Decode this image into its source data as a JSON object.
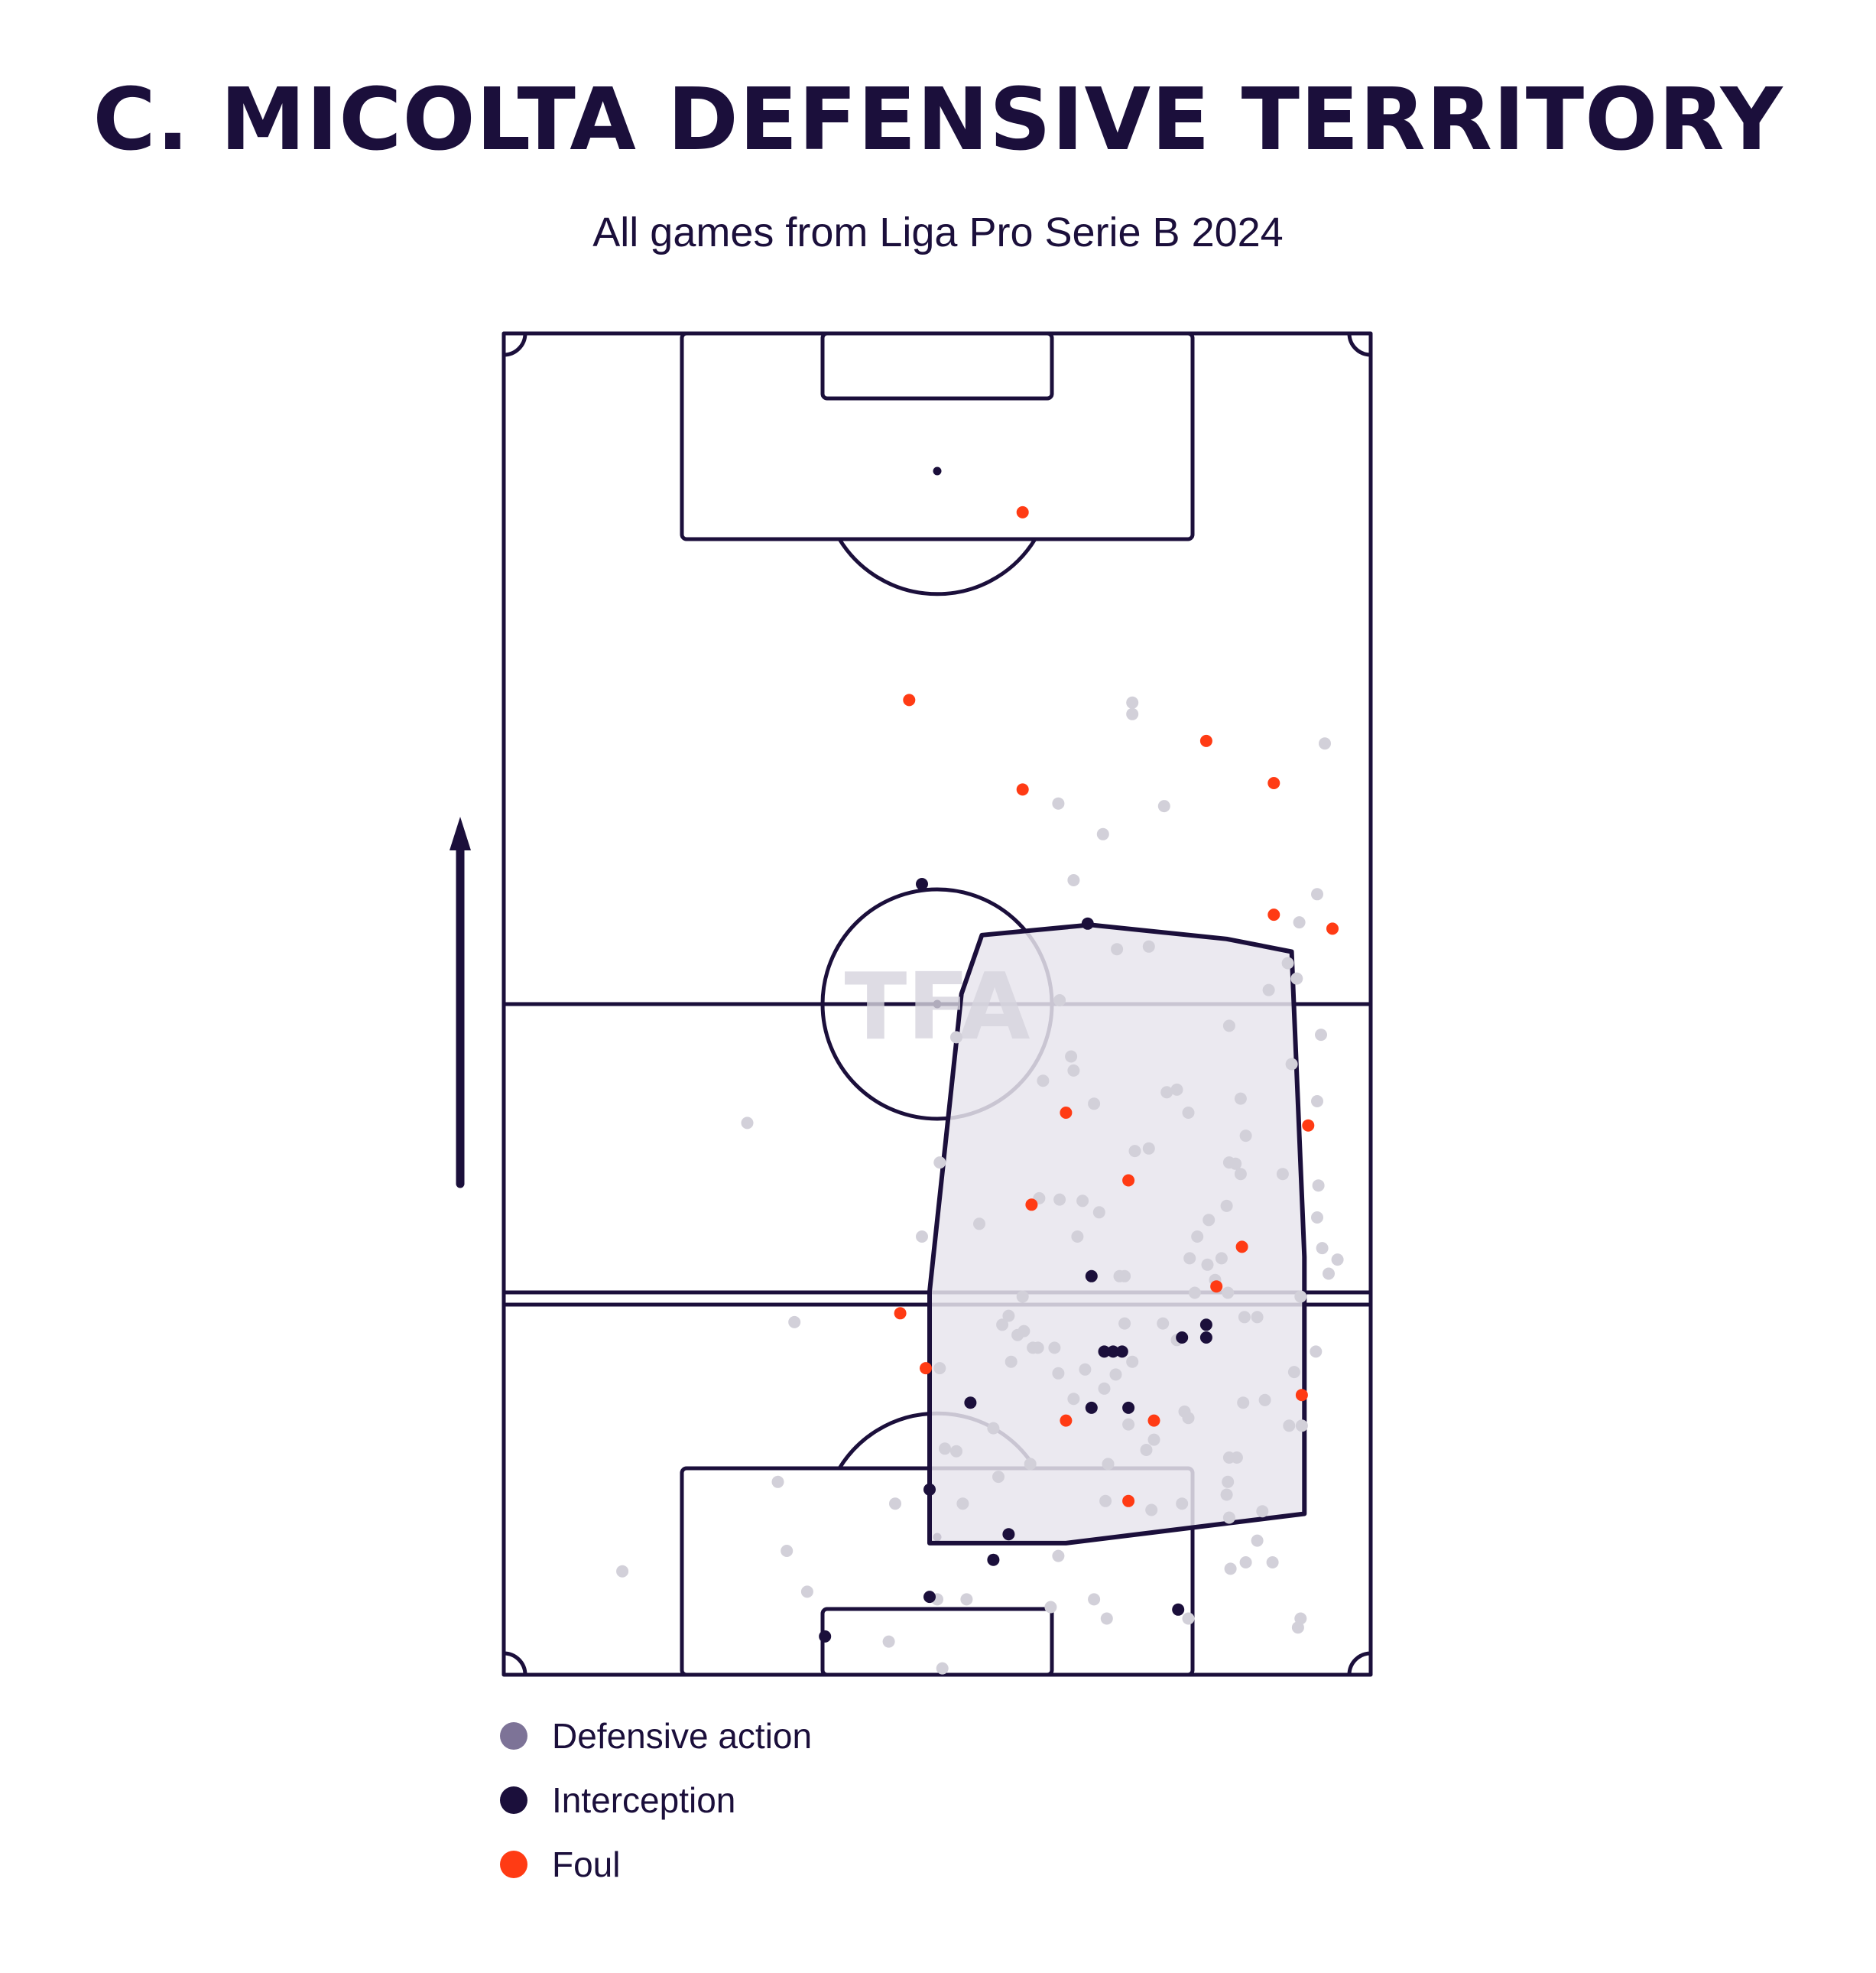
{
  "title": "C. MICOLTA DEFENSIVE TERRITORY",
  "subtitle": "All games from Liga Pro Serie B 2024",
  "watermark": "TFA",
  "colors": {
    "ink": "#1b0f3b",
    "defensive_action": "#d2d0d9",
    "interception": "#1b0f3b",
    "foul": "#ff3b14",
    "territory_fill": "#e8e5ed",
    "watermark": "#d6d3dd"
  },
  "direction_arrow": {
    "icon": "arrow-up-icon",
    "meaning": "attacking direction"
  },
  "legend": [
    {
      "label": "Defensive action",
      "color": "#7d7397"
    },
    {
      "label": "Interception",
      "color": "#1b0f3b"
    },
    {
      "label": "Foul",
      "color": "#ff3b14"
    }
  ],
  "chart_data": {
    "type": "scatter",
    "pitch": {
      "length": 105,
      "width": 68,
      "orientation": "vertical",
      "attacking": "up"
    },
    "series": [
      {
        "name": "Defensive action",
        "points": [
          [
            49.3,
            75.2
          ],
          [
            30.2,
            2.6
          ],
          [
            23.8,
            6.5
          ],
          [
            22.2,
            9.7
          ],
          [
            36.3,
            5.9
          ],
          [
            35.5,
            17.5
          ],
          [
            32.8,
            34.3
          ],
          [
            64.2,
            33.4
          ],
          [
            62.5,
            4.4
          ],
          [
            50.6,
            57.0
          ],
          [
            62.4,
            58.9
          ],
          [
            64.7,
            31.4
          ],
          [
            63.8,
            35.8
          ],
          [
            61.8,
            47.8
          ],
          [
            59.7,
            21.5
          ],
          [
            63.9,
            38.3
          ],
          [
            56.9,
            50.8
          ],
          [
            56.7,
            36.7
          ],
          [
            61.5,
            55.7
          ],
          [
            59.5,
            12.8
          ],
          [
            44.7,
            47.3
          ],
          [
            65.4,
            32.5
          ],
          [
            64.1,
            50.1
          ],
          [
            49.5,
            41.0
          ],
          [
            34.2,
            40.1
          ],
          [
            62.0,
            23.7
          ],
          [
            30.7,
            13.4
          ],
          [
            47.0,
            65.8
          ],
          [
            42.0,
            37.3
          ],
          [
            43.6,
            37.2
          ],
          [
            57.8,
            45.1
          ],
          [
            48.0,
            23.5
          ],
          [
            49.0,
            19.6
          ],
          [
            63.7,
            25.3
          ],
          [
            21.5,
            15.1
          ],
          [
            19.1,
            43.2
          ],
          [
            63.8,
            44.9
          ],
          [
            45.4,
            37.1
          ],
          [
            47.4,
            16.5
          ],
          [
            48.3,
            31.2
          ],
          [
            57.4,
            40.0
          ],
          [
            50.4,
            17.6
          ],
          [
            42.3,
            46.5
          ],
          [
            62.5,
            29.6
          ],
          [
            51.0,
            18.4
          ],
          [
            58.1,
            28.0
          ],
          [
            34.0,
            5.9
          ],
          [
            34.4,
            0.5
          ],
          [
            42.9,
            5.3
          ],
          [
            39.8,
            24.5
          ],
          [
            56.8,
            29.9
          ],
          [
            41.5,
            25.6
          ],
          [
            53.7,
            20.1
          ],
          [
            40.7,
            29.6
          ],
          [
            58.0,
            21.3
          ],
          [
            9.3,
            8.1
          ],
          [
            46.3,
            44.7
          ],
          [
            59.1,
            10.5
          ],
          [
            34.6,
            17.7
          ],
          [
            44.7,
            21.6
          ],
          [
            43.5,
            23.6
          ],
          [
            46.3,
            5.9
          ],
          [
            53.2,
            13.4
          ],
          [
            45.6,
            23.9
          ],
          [
            40.3,
            26.6
          ],
          [
            47.2,
            13.6
          ],
          [
            39.1,
            27.4
          ],
          [
            43.2,
            25.6
          ],
          [
            34.2,
            24.0
          ],
          [
            56.9,
            12.3
          ],
          [
            40.8,
            26.9
          ],
          [
            41.9,
            25.6
          ],
          [
            47.1,
            22.4
          ],
          [
            48.7,
            27.5
          ],
          [
            38.8,
            15.5
          ],
          [
            41.3,
            16.5
          ],
          [
            59.1,
            28.0
          ],
          [
            49.3,
            24.5
          ],
          [
            22.8,
            27.6
          ],
          [
            52.8,
            45.8
          ],
          [
            54.4,
            34.3
          ],
          [
            57.5,
            17.0
          ],
          [
            56.9,
            17.0
          ],
          [
            46.7,
            36.2
          ],
          [
            44.7,
            62.2
          ],
          [
            50.8,
            12.9
          ],
          [
            48.1,
            56.8
          ],
          [
            62.6,
            19.5
          ],
          [
            56.3,
            32.6
          ],
          [
            54.2,
            29.9
          ],
          [
            55.8,
            30.9
          ],
          [
            53.8,
            32.6
          ],
          [
            49.3,
            76.1
          ],
          [
            43.5,
            68.2
          ],
          [
            43.6,
            52.8
          ],
          [
            44.5,
            48.4
          ],
          [
            51.8,
            68.0
          ],
          [
            52.0,
            45.6
          ],
          [
            51.7,
            27.5
          ],
          [
            45.0,
            34.3
          ],
          [
            58.2,
            42.2
          ],
          [
            57.8,
            39.2
          ],
          [
            53.4,
            20.6
          ],
          [
            36.0,
            13.4
          ],
          [
            52.8,
            26.2
          ],
          [
            38.4,
            19.3
          ],
          [
            47.3,
            4.4
          ],
          [
            56.7,
            14.1
          ],
          [
            48.7,
            31.2
          ],
          [
            37.3,
            35.3
          ],
          [
            39.6,
            28.1
          ],
          [
            53.7,
            44.0
          ],
          [
            35.5,
            49.9
          ],
          [
            56.9,
            40.1
          ],
          [
            61.1,
            39.2
          ],
          [
            56.8,
            15.1
          ],
          [
            53.7,
            4.4
          ],
          [
            43.5,
            9.3
          ],
          [
            62.3,
            3.7
          ],
          [
            60.3,
            8.8
          ],
          [
            55.2,
            32.1
          ],
          [
            55.3,
            35.6
          ],
          [
            57.0,
            8.3
          ],
          [
            58.2,
            8.8
          ],
          [
            61.6,
            19.5
          ],
          [
            64.4,
            72.9
          ],
          [
            63.8,
            61.1
          ],
          [
            62.2,
            54.5
          ],
          [
            60.0,
            53.6
          ],
          [
            50.6,
            41.2
          ]
        ]
      },
      {
        "name": "Interception",
        "points": [
          [
            32.8,
            61.9
          ],
          [
            45.8,
            58.8
          ],
          [
            46.1,
            31.2
          ],
          [
            47.8,
            25.3
          ],
          [
            47.1,
            25.3
          ],
          [
            48.5,
            25.3
          ],
          [
            53.2,
            26.4
          ],
          [
            55.1,
            26.4
          ],
          [
            55.1,
            27.4
          ],
          [
            36.6,
            21.3
          ],
          [
            46.1,
            20.9
          ],
          [
            49.0,
            20.9
          ],
          [
            33.4,
            14.5
          ],
          [
            39.6,
            11.0
          ],
          [
            38.4,
            9.0
          ],
          [
            33.4,
            6.1
          ],
          [
            25.2,
            3.0
          ],
          [
            52.9,
            5.1
          ]
        ]
      },
      {
        "name": "Foul",
        "points": [
          [
            40.7,
            91.0
          ],
          [
            31.8,
            76.3
          ],
          [
            40.7,
            69.3
          ],
          [
            55.1,
            73.1
          ],
          [
            60.4,
            69.8
          ],
          [
            60.4,
            59.5
          ],
          [
            65.0,
            58.4
          ],
          [
            44.1,
            44.0
          ],
          [
            63.1,
            43.0
          ],
          [
            49.0,
            38.7
          ],
          [
            41.4,
            36.8
          ],
          [
            57.9,
            33.5
          ],
          [
            55.9,
            30.4
          ],
          [
            31.1,
            28.3
          ],
          [
            33.1,
            24.0
          ],
          [
            62.6,
            21.9
          ],
          [
            44.1,
            19.9
          ],
          [
            51.0,
            19.9
          ],
          [
            49.0,
            13.6
          ]
        ]
      }
    ],
    "territory_polygon": [
      [
        36.6,
        10.3
      ],
      [
        44.1,
        10.3
      ],
      [
        62.8,
        12.6
      ],
      [
        62.8,
        32.7
      ],
      [
        61.8,
        56.6
      ],
      [
        56.7,
        57.6
      ],
      [
        46.0,
        58.7
      ],
      [
        37.5,
        57.9
      ],
      [
        35.9,
        53.3
      ],
      [
        33.4,
        30.0
      ],
      [
        33.4,
        10.3
      ]
    ],
    "title": "C. MICOLTA DEFENSIVE TERRITORY",
    "subtitle": "All games from Liga Pro Serie B 2024",
    "legend_position": "bottom-left",
    "grid": false
  }
}
